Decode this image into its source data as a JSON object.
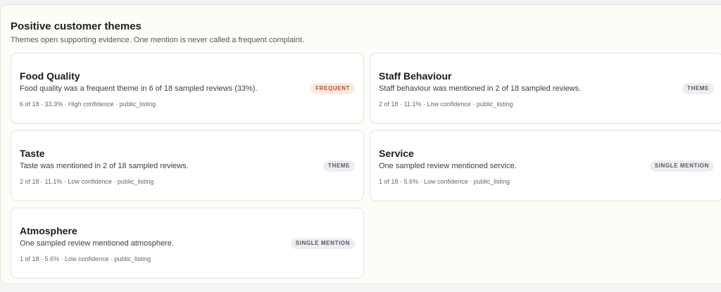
{
  "section": {
    "title": "Positive customer themes",
    "subtitle": "Themes open supporting evidence. One mention is never called a frequent complaint."
  },
  "colors": {
    "panel_bg": "#fdfcf6",
    "frequent_badge_bg": "#fdebe2",
    "frequent_badge_text": "#c04a1f",
    "neutral_badge_bg": "#eeeef2",
    "neutral_badge_text": "#555562"
  },
  "themes": [
    {
      "title": "Food Quality",
      "description": "Food quality was a frequent theme in 6 of 18 sampled reviews (33%).",
      "meta": "6 of 18 · 33.3% · High confidence · public_listing",
      "badge": "FREQUENT"
    },
    {
      "title": "Staff Behaviour",
      "description": "Staff behaviour was mentioned in 2 of 18 sampled reviews.",
      "meta": "2 of 18 · 11.1% · Low confidence · public_listing",
      "badge": "THEME"
    },
    {
      "title": "Taste",
      "description": "Taste was mentioned in 2 of 18 sampled reviews.",
      "meta": "2 of 18 · 11.1% · Low confidence · public_listing",
      "badge": "THEME"
    },
    {
      "title": "Service",
      "description": "One sampled review mentioned service.",
      "meta": "1 of 18 · 5.6% · Low confidence · public_listing",
      "badge": "SINGLE MENTION"
    },
    {
      "title": "Atmosphere",
      "description": "One sampled review mentioned atmosphere.",
      "meta": "1 of 18 · 5.6% · Low confidence · public_listing",
      "badge": "SINGLE MENTION"
    }
  ]
}
